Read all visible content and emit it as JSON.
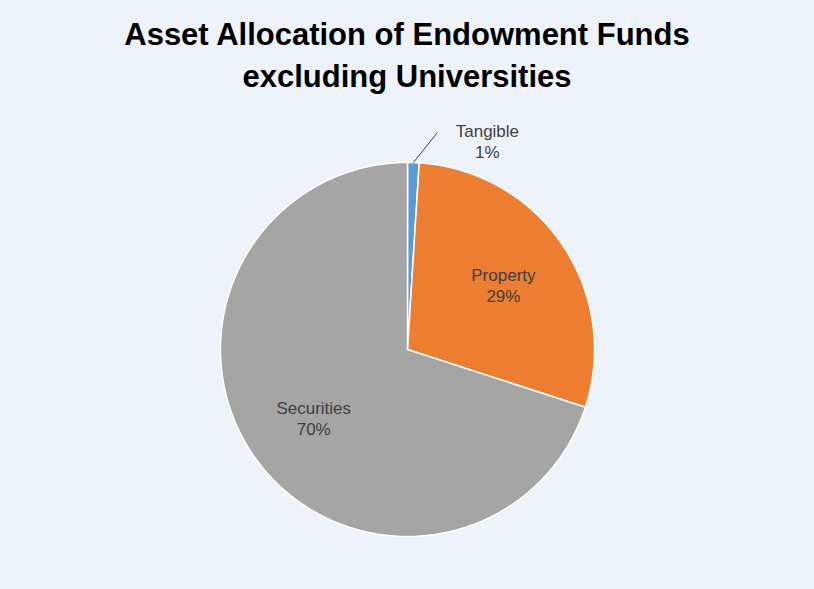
{
  "chart_data": {
    "type": "pie",
    "title": "Asset Allocation of Endowment Funds excluding Universities",
    "categories": [
      "Tangible",
      "Property",
      "Securities"
    ],
    "values": [
      1,
      29,
      70
    ],
    "value_labels": [
      "1%",
      "29%",
      "70%"
    ],
    "colors": [
      "#5b9bd5",
      "#ed7d31",
      "#a5a5a5"
    ],
    "data_labels": true
  }
}
